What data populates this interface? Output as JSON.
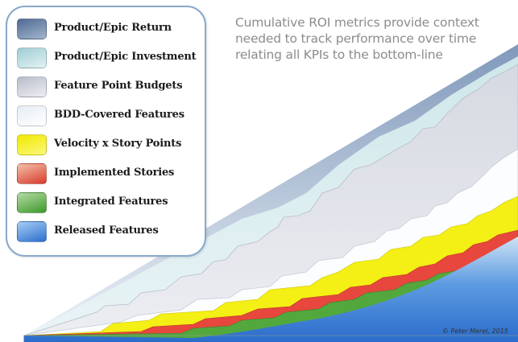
{
  "caption": {
    "lines": [
      "Cumulative ROI metrics provide context",
      "needed to track performance over time",
      "relating all KPIs to the bottom-line"
    ]
  },
  "legend": {
    "items": [
      {
        "label": "Product/Epic Return",
        "color": "#6f89ad",
        "icon": "swatch-slate-blue"
      },
      {
        "label": "Product/Epic Investment",
        "color": "#b9dde2",
        "icon": "swatch-pale-teal"
      },
      {
        "label": "Feature Point Budgets",
        "color": "#d2d5de",
        "icon": "swatch-light-gray"
      },
      {
        "label": "BDD-Covered Features",
        "color": "#f3f7fb",
        "icon": "swatch-white"
      },
      {
        "label": "Velocity x Story Points",
        "color": "#f5f00e",
        "icon": "swatch-yellow"
      },
      {
        "label": "Implemented Stories",
        "color": "#e8443a",
        "icon": "swatch-red"
      },
      {
        "label": "Integrated Features",
        "color": "#52a63c",
        "icon": "swatch-green"
      },
      {
        "label": "Released Features",
        "color": "#3b7fd3",
        "icon": "swatch-blue"
      }
    ]
  },
  "credit": "© Peter Merel, 2015"
}
